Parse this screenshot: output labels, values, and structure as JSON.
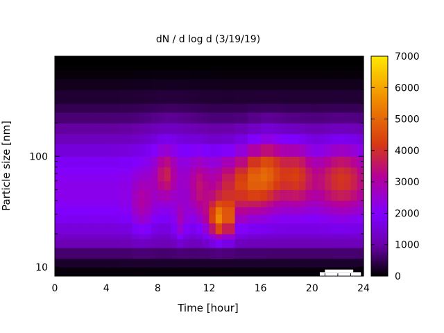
{
  "chart_data": {
    "type": "heatmap",
    "title": "dN / d log d (3/19/19)",
    "xlabel": "Time [hour]",
    "ylabel": "Particle size [nm]",
    "xlim": [
      0,
      24
    ],
    "ylim": [
      8.3,
      800
    ],
    "yscale": "log",
    "x_ticks": [
      0,
      4,
      8,
      12,
      16,
      20,
      24
    ],
    "y_ticks": [
      10,
      100
    ],
    "colorbar": {
      "range": [
        0,
        7000
      ],
      "ticks": [
        0,
        1000,
        2000,
        3000,
        4000,
        5000,
        6000,
        7000
      ],
      "colormap": [
        "#000000",
        "#6a00a8",
        "#8000ff",
        "#b4009a",
        "#d63a12",
        "#f08a00",
        "#ffe800"
      ]
    },
    "time_hours": [
      0,
      1,
      2,
      3,
      4,
      5,
      6,
      6.5,
      7,
      7.5,
      8,
      8.5,
      9,
      9.5,
      10,
      10.5,
      11,
      11.5,
      12,
      12.5,
      13,
      14,
      15,
      16,
      16.5,
      17,
      17.5,
      18,
      18.5,
      19,
      19.5,
      20,
      20.5,
      21,
      21.5,
      22,
      22.5,
      23,
      23.5,
      24
    ],
    "size_nm": [
      8.5,
      10,
      12,
      15,
      18,
      20,
      25,
      30,
      35,
      40,
      50,
      60,
      70,
      80,
      100,
      130,
      160,
      200,
      250,
      300,
      400,
      500,
      600,
      700,
      800
    ],
    "missing": [
      {
        "t_start": 20.6,
        "t_end": 23.8,
        "d_start": 8.3,
        "d_end": 9.0
      },
      {
        "t_start": 21.0,
        "t_end": 23.2,
        "d_start": 9.0,
        "d_end": 9.5
      }
    ]
  }
}
